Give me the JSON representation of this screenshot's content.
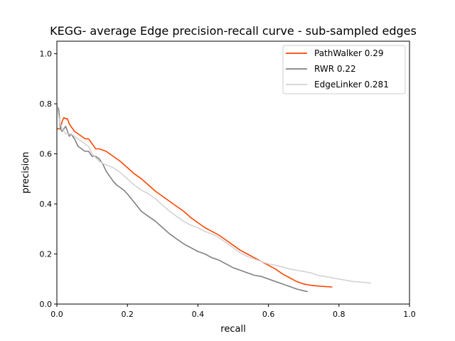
{
  "chart_data": {
    "type": "line",
    "title": "KEGG- average Edge precision-recall curve - sub-sampled edges",
    "xlabel": "recall",
    "ylabel": "precision",
    "xlim": [
      0,
      1
    ],
    "ylim": [
      0,
      1.05
    ],
    "xticks": [
      0,
      0.2,
      0.4,
      0.6,
      0.8,
      1
    ],
    "xtick_labels": [
      "0.0",
      "0.2",
      "0.4",
      "0.6",
      "0.8",
      "1.0"
    ],
    "yticks": [
      0,
      0.2,
      0.4,
      0.6,
      0.8,
      1
    ],
    "ytick_labels": [
      "0.0",
      "0.2",
      "0.4",
      "0.6",
      "0.8",
      "1.0"
    ],
    "grid": false,
    "legend_position": "top-right",
    "series": [
      {
        "name": "PathWalker 0.29",
        "color": "#ff4500",
        "x": [
          0.0,
          0.01,
          0.015,
          0.02,
          0.025,
          0.03,
          0.035,
          0.04,
          0.05,
          0.06,
          0.07,
          0.08,
          0.09,
          0.1,
          0.11,
          0.12,
          0.14,
          0.15,
          0.16,
          0.17,
          0.18,
          0.2,
          0.22,
          0.24,
          0.26,
          0.28,
          0.3,
          0.32,
          0.34,
          0.36,
          0.38,
          0.4,
          0.42,
          0.44,
          0.46,
          0.48,
          0.5,
          0.52,
          0.54,
          0.56,
          0.58,
          0.6,
          0.62,
          0.64,
          0.66,
          0.68,
          0.7,
          0.72,
          0.74,
          0.76,
          0.78
        ],
        "y": [
          0.7,
          0.7,
          0.73,
          0.745,
          0.74,
          0.74,
          0.72,
          0.71,
          0.69,
          0.68,
          0.67,
          0.66,
          0.66,
          0.64,
          0.62,
          0.62,
          0.61,
          0.6,
          0.59,
          0.58,
          0.57,
          0.545,
          0.52,
          0.5,
          0.475,
          0.45,
          0.43,
          0.41,
          0.39,
          0.37,
          0.345,
          0.325,
          0.305,
          0.29,
          0.275,
          0.255,
          0.235,
          0.215,
          0.2,
          0.185,
          0.17,
          0.155,
          0.14,
          0.12,
          0.105,
          0.09,
          0.08,
          0.075,
          0.072,
          0.07,
          0.068
        ]
      },
      {
        "name": "RWR 0.22",
        "color": "#808080",
        "x": [
          0.0,
          0.005,
          0.01,
          0.015,
          0.02,
          0.025,
          0.03,
          0.035,
          0.04,
          0.05,
          0.06,
          0.07,
          0.08,
          0.09,
          0.1,
          0.11,
          0.12,
          0.13,
          0.14,
          0.15,
          0.16,
          0.17,
          0.18,
          0.19,
          0.2,
          0.22,
          0.24,
          0.26,
          0.28,
          0.3,
          0.32,
          0.34,
          0.36,
          0.38,
          0.4,
          0.42,
          0.44,
          0.46,
          0.48,
          0.5,
          0.52,
          0.54,
          0.56,
          0.58,
          0.6,
          0.62,
          0.64,
          0.66,
          0.68,
          0.7,
          0.71
        ],
        "y": [
          0.79,
          0.78,
          0.7,
          0.69,
          0.7,
          0.71,
          0.69,
          0.67,
          0.68,
          0.66,
          0.63,
          0.62,
          0.61,
          0.61,
          0.59,
          0.59,
          0.58,
          0.56,
          0.53,
          0.51,
          0.49,
          0.475,
          0.465,
          0.455,
          0.44,
          0.405,
          0.37,
          0.35,
          0.33,
          0.305,
          0.28,
          0.26,
          0.24,
          0.225,
          0.21,
          0.2,
          0.185,
          0.175,
          0.16,
          0.145,
          0.135,
          0.125,
          0.115,
          0.11,
          0.1,
          0.09,
          0.08,
          0.07,
          0.06,
          0.053,
          0.05
        ]
      },
      {
        "name": "EdgeLinker 0.281",
        "color": "#d3d3d3",
        "x": [
          0.0,
          0.005,
          0.01,
          0.015,
          0.02,
          0.025,
          0.03,
          0.04,
          0.05,
          0.06,
          0.07,
          0.08,
          0.09,
          0.1,
          0.12,
          0.14,
          0.16,
          0.18,
          0.2,
          0.22,
          0.24,
          0.26,
          0.28,
          0.3,
          0.32,
          0.34,
          0.36,
          0.38,
          0.4,
          0.42,
          0.44,
          0.46,
          0.48,
          0.5,
          0.52,
          0.54,
          0.56,
          0.58,
          0.6,
          0.62,
          0.64,
          0.66,
          0.68,
          0.7,
          0.72,
          0.74,
          0.76,
          0.78,
          0.8,
          0.82,
          0.84,
          0.86,
          0.88,
          0.89
        ],
        "y": [
          0.8,
          0.75,
          0.72,
          0.7,
          0.69,
          0.68,
          0.68,
          0.68,
          0.67,
          0.66,
          0.65,
          0.64,
          0.63,
          0.6,
          0.57,
          0.555,
          0.545,
          0.525,
          0.5,
          0.475,
          0.455,
          0.44,
          0.42,
          0.395,
          0.37,
          0.35,
          0.33,
          0.315,
          0.305,
          0.29,
          0.28,
          0.265,
          0.245,
          0.225,
          0.205,
          0.19,
          0.18,
          0.17,
          0.16,
          0.155,
          0.148,
          0.14,
          0.135,
          0.13,
          0.125,
          0.115,
          0.11,
          0.105,
          0.1,
          0.095,
          0.09,
          0.088,
          0.085,
          0.084
        ]
      }
    ]
  }
}
